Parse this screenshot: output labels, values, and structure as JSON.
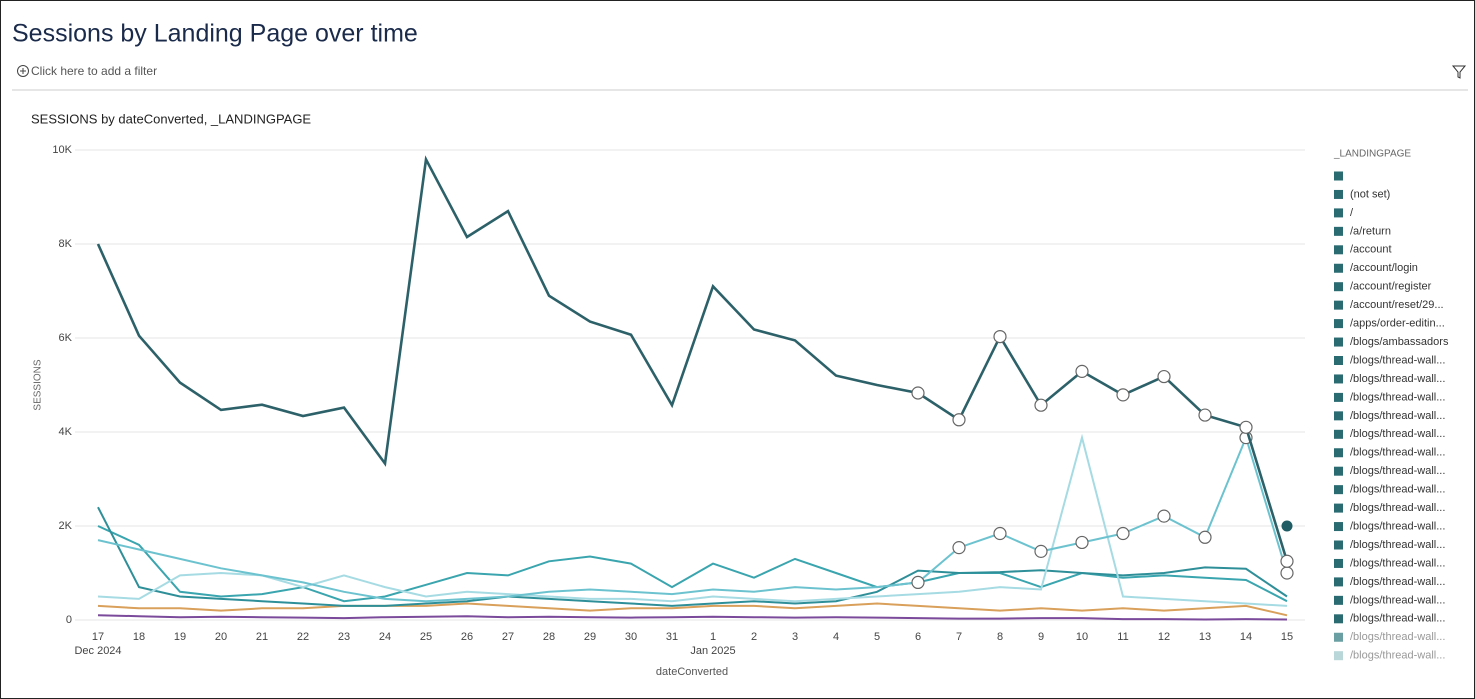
{
  "header": {
    "title": "Sessions by Landing Page over time",
    "filter_prompt": "Click here to add a filter"
  },
  "chart_data": {
    "type": "line",
    "title": "SESSIONS by dateConverted, _LANDINGPAGE",
    "x_label": "dateConverted",
    "y_label": "SESSIONS",
    "categories": [
      "17",
      "18",
      "19",
      "20",
      "21",
      "22",
      "23",
      "24",
      "25",
      "26",
      "27",
      "28",
      "29",
      "30",
      "31",
      "1",
      "2",
      "3",
      "4",
      "5",
      "6",
      "7",
      "8",
      "9",
      "10",
      "11",
      "12",
      "13",
      "14",
      "15"
    ],
    "month_labels": [
      "Dec 2024",
      null,
      null,
      null,
      null,
      null,
      null,
      null,
      null,
      null,
      null,
      null,
      null,
      null,
      null,
      "Jan 2025",
      null,
      null,
      null,
      null,
      null,
      null,
      null,
      null,
      null,
      null,
      null,
      null,
      null,
      null
    ],
    "ylim": [
      0,
      10000
    ],
    "yticks": [
      0,
      {
        "value": 2000,
        "label": "2K"
      },
      {
        "value": 4000,
        "label": "4K"
      },
      {
        "value": 6000,
        "label": "6K"
      },
      {
        "value": 8000,
        "label": "8K"
      },
      {
        "value": 10000,
        "label": "10K"
      }
    ],
    "grid": true,
    "series": [
      {
        "color": "#2d6169",
        "values": [
          8000,
          6050,
          5050,
          4470,
          4580,
          4340,
          4520,
          3330,
          9800,
          8150,
          8700,
          6900,
          6350,
          6070,
          4570,
          7100,
          6180,
          5950,
          5200,
          5000,
          4830,
          4260,
          6030,
          4570,
          5290,
          4790,
          5180,
          4360,
          4100,
          1250
        ]
      },
      {
        "color": "#6cc3cf",
        "values": [
          1700,
          1500,
          1300,
          1100,
          950,
          800,
          600,
          450,
          400,
          450,
          500,
          600,
          650,
          600,
          550,
          650,
          600,
          700,
          650,
          700,
          800,
          1540,
          1840,
          1460,
          1650,
          1840,
          2210,
          1760,
          3880,
          1000
        ]
      },
      {
        "color": "#a6dbe3",
        "values": [
          500,
          450,
          950,
          1000,
          950,
          700,
          950,
          700,
          500,
          600,
          550,
          500,
          450,
          450,
          400,
          500,
          450,
          400,
          450,
          500,
          550,
          600,
          700,
          650,
          3880,
          500,
          450,
          400,
          350,
          300
        ]
      },
      {
        "color": "#2f8f99",
        "values": [
          2400,
          700,
          500,
          450,
          400,
          350,
          300,
          300,
          350,
          400,
          500,
          450,
          400,
          350,
          300,
          350,
          400,
          350,
          400,
          600,
          1050,
          1000,
          1020,
          1060,
          1000,
          950,
          1000,
          1120,
          1090,
          500
        ]
      },
      {
        "color": "#3aa5ae",
        "values": [
          2000,
          1600,
          600,
          500,
          550,
          700,
          400,
          500,
          750,
          1000,
          950,
          1250,
          1350,
          1200,
          700,
          1200,
          900,
          1300,
          1000,
          700,
          800,
          1000,
          1000,
          700,
          1000,
          900,
          950,
          900,
          850,
          400
        ]
      },
      {
        "color": "#d9a05b",
        "values": [
          300,
          250,
          250,
          200,
          250,
          250,
          300,
          300,
          300,
          350,
          300,
          250,
          200,
          250,
          250,
          300,
          300,
          250,
          300,
          350,
          300,
          250,
          200,
          250,
          200,
          250,
          200,
          250,
          300,
          100
        ]
      },
      {
        "color": "#7b4a9b",
        "values": [
          100,
          80,
          60,
          70,
          60,
          50,
          40,
          60,
          70,
          80,
          60,
          70,
          60,
          50,
          60,
          70,
          60,
          50,
          60,
          50,
          40,
          30,
          30,
          40,
          40,
          20,
          20,
          10,
          20,
          10
        ]
      },
      {
        "color": "#1f5c63",
        "values": [
          null,
          null,
          null,
          null,
          null,
          null,
          null,
          null,
          null,
          null,
          null,
          null,
          null,
          null,
          null,
          null,
          null,
          null,
          null,
          null,
          null,
          null,
          null,
          null,
          null,
          null,
          null,
          null,
          null,
          2000
        ]
      }
    ],
    "legend": {
      "title": "_LANDINGPAGE",
      "items": [
        {
          "name": null,
          "color": "#2a6b72"
        },
        {
          "name": "(not set)",
          "color": "#2a6b72"
        },
        {
          "name": "/",
          "color": "#2a6b72"
        },
        {
          "name": "/a/return",
          "color": "#2a6b72"
        },
        {
          "name": "/account",
          "color": "#2a6b72"
        },
        {
          "name": "/account/login",
          "color": "#2a6b72"
        },
        {
          "name": "/account/register",
          "color": "#2a6b72"
        },
        {
          "name": "/account/reset/29...",
          "color": "#2a6b72"
        },
        {
          "name": "/apps/order-editin...",
          "color": "#2a6b72"
        },
        {
          "name": "/blogs/ambassadors",
          "color": "#2a6b72"
        },
        {
          "name": "/blogs/thread-wall...",
          "color": "#2a6b72"
        },
        {
          "name": "/blogs/thread-wall...",
          "color": "#2a6b72"
        },
        {
          "name": "/blogs/thread-wall...",
          "color": "#2a6b72"
        },
        {
          "name": "/blogs/thread-wall...",
          "color": "#2a6b72"
        },
        {
          "name": "/blogs/thread-wall...",
          "color": "#2a6b72"
        },
        {
          "name": "/blogs/thread-wall...",
          "color": "#2a6b72"
        },
        {
          "name": "/blogs/thread-wall...",
          "color": "#2a6b72"
        },
        {
          "name": "/blogs/thread-wall...",
          "color": "#2a6b72"
        },
        {
          "name": "/blogs/thread-wall...",
          "color": "#2a6b72"
        },
        {
          "name": "/blogs/thread-wall...",
          "color": "#2a6b72"
        },
        {
          "name": "/blogs/thread-wall...",
          "color": "#2a6b72"
        },
        {
          "name": "/blogs/thread-wall...",
          "color": "#2a6b72"
        },
        {
          "name": "/blogs/thread-wall...",
          "color": "#2a6b72"
        },
        {
          "name": "/blogs/thread-wall...",
          "color": "#2a6b72"
        },
        {
          "name": "/blogs/thread-wall...",
          "color": "#2a6b72"
        },
        {
          "name": "/blogs/thread-wall...",
          "color": "#6a9fa4"
        },
        {
          "name": "/blogs/thread-wall...",
          "color": "#b9d6d8"
        }
      ]
    }
  }
}
